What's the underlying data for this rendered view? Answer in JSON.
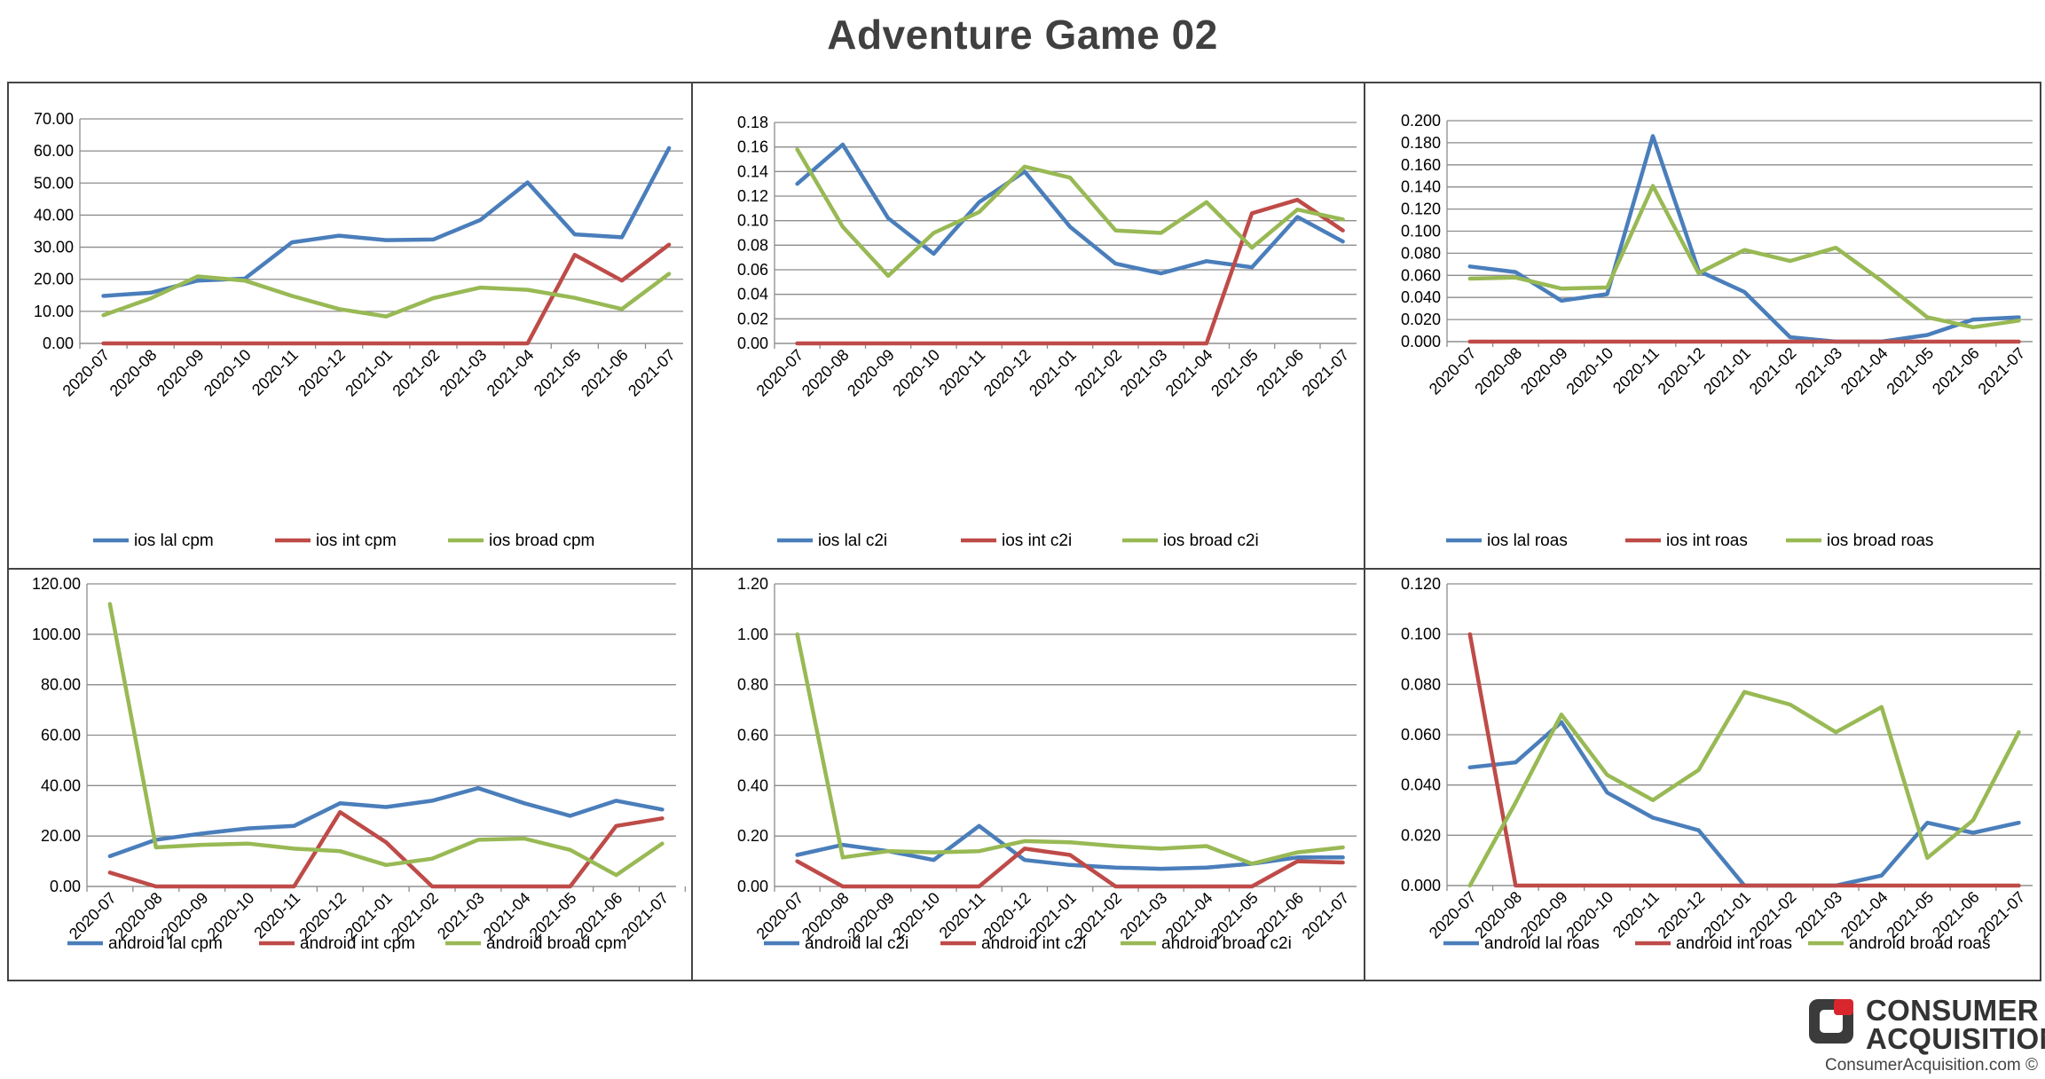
{
  "title": "Adventure Game 02",
  "colors": {
    "lal": "#4A7EBB",
    "int": "#BE4B48",
    "broad": "#98B954"
  },
  "brand": {
    "line1": "CONSUMER",
    "line2": "ACQUISITION",
    "url": "ConsumerAcquisition.com ©",
    "icon": "consumer-acquisition-logo-icon"
  },
  "chart_data": [
    {
      "type": "line",
      "categories": [
        "2020-07",
        "2020-08",
        "2020-09",
        "2020-10",
        "2020-11",
        "2020-12",
        "2021-01",
        "2021-02",
        "2021-03",
        "2021-04",
        "2021-05",
        "2021-06",
        "2021-07"
      ],
      "ylim": [
        0,
        70
      ],
      "yticks": [
        "0.00",
        "10.00",
        "20.00",
        "30.00",
        "40.00",
        "50.00",
        "60.00",
        "70.00"
      ],
      "grid": true,
      "legend": "bottom",
      "series": [
        {
          "name": "ios lal cpm",
          "color": "#4A7EBB",
          "values": [
            14.8,
            15.8,
            19.6,
            20.2,
            31.5,
            33.6,
            32.2,
            32.4,
            38.5,
            50.2,
            34.0,
            33.1,
            60.9
          ]
        },
        {
          "name": "ios int cpm",
          "color": "#BE4B48",
          "values": [
            0,
            0,
            0,
            0,
            0,
            0,
            0,
            0,
            0,
            0,
            27.6,
            19.6,
            30.8
          ]
        },
        {
          "name": "ios broad cpm",
          "color": "#98B954",
          "values": [
            8.8,
            14.0,
            20.9,
            19.6,
            14.8,
            10.7,
            8.4,
            14.1,
            17.4,
            16.7,
            14.2,
            10.7,
            21.7
          ]
        }
      ]
    },
    {
      "type": "line",
      "categories": [
        "2020-07",
        "2020-08",
        "2020-09",
        "2020-10",
        "2020-11",
        "2020-12",
        "2021-01",
        "2021-02",
        "2021-03",
        "2021-04",
        "2021-05",
        "2021-06",
        "2021-07"
      ],
      "ylim": [
        0,
        0.18
      ],
      "yticks": [
        "0.00",
        "0.02",
        "0.04",
        "0.06",
        "0.08",
        "0.10",
        "0.12",
        "0.14",
        "0.16",
        "0.18"
      ],
      "grid": true,
      "legend": "bottom",
      "series": [
        {
          "name": "ios lal c2i",
          "color": "#4A7EBB",
          "values": [
            0.13,
            0.162,
            0.102,
            0.073,
            0.115,
            0.14,
            0.095,
            0.065,
            0.057,
            0.067,
            0.062,
            0.103,
            0.083
          ]
        },
        {
          "name": "ios int c2i",
          "color": "#BE4B48",
          "values": [
            0,
            0,
            0,
            0,
            0,
            0,
            0,
            0,
            0,
            0,
            0.106,
            0.117,
            0.092
          ]
        },
        {
          "name": "ios broad c2i",
          "color": "#98B954",
          "values": [
            0.158,
            0.095,
            0.055,
            0.09,
            0.107,
            0.144,
            0.135,
            0.092,
            0.09,
            0.115,
            0.078,
            0.109,
            0.101
          ]
        }
      ]
    },
    {
      "type": "line",
      "categories": [
        "2020-07",
        "2020-08",
        "2020-09",
        "2020-10",
        "2020-11",
        "2020-12",
        "2021-01",
        "2021-02",
        "2021-03",
        "2021-04",
        "2021-05",
        "2021-06",
        "2021-07"
      ],
      "ylim": [
        0,
        0.2
      ],
      "yticks": [
        "0.000",
        "0.020",
        "0.040",
        "0.060",
        "0.080",
        "0.100",
        "0.120",
        "0.140",
        "0.160",
        "0.180",
        "0.200"
      ],
      "grid": true,
      "legend": "bottom",
      "series": [
        {
          "name": "ios lal roas",
          "color": "#4A7EBB",
          "values": [
            0.068,
            0.063,
            0.037,
            0.043,
            0.186,
            0.064,
            0.045,
            0.004,
            0.0,
            0.0,
            0.006,
            0.02,
            0.022
          ]
        },
        {
          "name": "ios int roas",
          "color": "#BE4B48",
          "values": [
            0,
            0,
            0,
            0,
            0,
            0,
            0,
            0,
            0,
            0,
            0,
            0,
            0
          ]
        },
        {
          "name": "ios broad roas",
          "color": "#98B954",
          "values": [
            0.057,
            0.058,
            0.048,
            0.049,
            0.141,
            0.062,
            0.083,
            0.073,
            0.085,
            0.055,
            0.022,
            0.013,
            0.019
          ]
        }
      ]
    },
    {
      "type": "line",
      "categories": [
        "2020-07",
        "2020-08",
        "2020-09",
        "2020-10",
        "2020-11",
        "2020-12",
        "2021-01",
        "2021-02",
        "2021-03",
        "2021-04",
        "2021-05",
        "2021-06",
        "2021-07"
      ],
      "ylim": [
        0,
        120
      ],
      "yticks": [
        "0.00",
        "20.00",
        "40.00",
        "60.00",
        "80.00",
        "100.00",
        "120.00"
      ],
      "grid": true,
      "legend": "bottom",
      "series": [
        {
          "name": "android lal cpm",
          "color": "#4A7EBB",
          "values": [
            12.0,
            18.5,
            21.0,
            23.0,
            24.0,
            33.0,
            31.5,
            34.0,
            39.0,
            33.0,
            28.0,
            34.0,
            30.5
          ]
        },
        {
          "name": "android int cpm",
          "color": "#BE4B48",
          "values": [
            5.5,
            0,
            0,
            0,
            0,
            29.5,
            17.5,
            0,
            0,
            0,
            0,
            24.0,
            27.0
          ]
        },
        {
          "name": "android broad cpm",
          "color": "#98B954",
          "values": [
            112.0,
            15.5,
            16.5,
            17.0,
            15.0,
            14.0,
            8.5,
            11.0,
            18.5,
            19.0,
            14.5,
            4.5,
            17.0
          ]
        }
      ]
    },
    {
      "type": "line",
      "categories": [
        "2020-07",
        "2020-08",
        "2020-09",
        "2020-10",
        "2020-11",
        "2020-12",
        "2021-01",
        "2021-02",
        "2021-03",
        "2021-04",
        "2021-05",
        "2021-06",
        "2021-07"
      ],
      "ylim": [
        0,
        1.2
      ],
      "yticks": [
        "0.00",
        "0.20",
        "0.40",
        "0.60",
        "0.80",
        "1.00",
        "1.20"
      ],
      "grid": true,
      "legend": "bottom",
      "series": [
        {
          "name": "android lal c2i",
          "color": "#4A7EBB",
          "values": [
            0.125,
            0.165,
            0.14,
            0.105,
            0.24,
            0.105,
            0.085,
            0.075,
            0.07,
            0.075,
            0.09,
            0.115,
            0.115
          ]
        },
        {
          "name": "android int c2i",
          "color": "#BE4B48",
          "values": [
            0.1,
            0,
            0,
            0,
            0,
            0.15,
            0.125,
            0,
            0,
            0,
            0,
            0.1,
            0.095
          ]
        },
        {
          "name": "android broad c2i",
          "color": "#98B954",
          "values": [
            1.0,
            0.115,
            0.14,
            0.135,
            0.14,
            0.18,
            0.175,
            0.16,
            0.15,
            0.16,
            0.09,
            0.135,
            0.155
          ]
        }
      ]
    },
    {
      "type": "line",
      "categories": [
        "2020-07",
        "2020-08",
        "2020-09",
        "2020-10",
        "2020-11",
        "2020-12",
        "2021-01",
        "2021-02",
        "2021-03",
        "2021-04",
        "2021-05",
        "2021-06",
        "2021-07"
      ],
      "ylim": [
        0,
        0.12
      ],
      "yticks": [
        "0.000",
        "0.020",
        "0.040",
        "0.060",
        "0.080",
        "0.100",
        "0.120"
      ],
      "grid": true,
      "legend": "bottom",
      "series": [
        {
          "name": "android lal roas",
          "color": "#4A7EBB",
          "values": [
            0.047,
            0.049,
            0.065,
            0.037,
            0.027,
            0.022,
            0.0,
            0.0,
            0.0,
            0.004,
            0.025,
            0.021,
            0.025
          ]
        },
        {
          "name": "android int roas",
          "color": "#BE4B48",
          "values": [
            0.1,
            0,
            0,
            0,
            0,
            0,
            0,
            0,
            0,
            0,
            0,
            0,
            0
          ]
        },
        {
          "name": "android broad roas",
          "color": "#98B954",
          "values": [
            0.0,
            0.033,
            0.068,
            0.044,
            0.034,
            0.046,
            0.077,
            0.072,
            0.061,
            0.071,
            0.011,
            0.026,
            0.061
          ]
        }
      ]
    }
  ]
}
